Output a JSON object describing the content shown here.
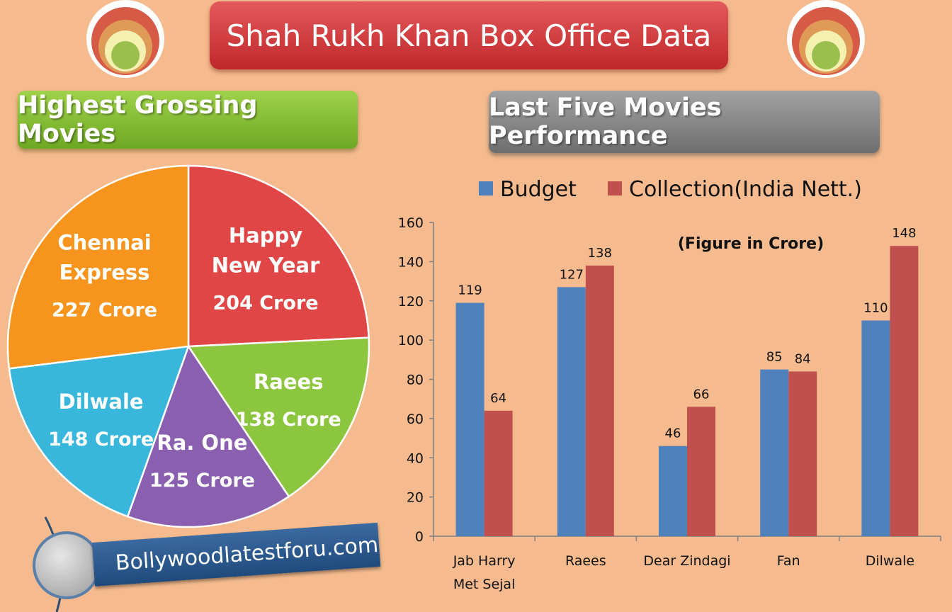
{
  "title": "Shah Rukh Khan Box Office Data",
  "left_heading": "Highest Grossing Movies",
  "right_heading": "Last Five Movies Performance",
  "footer_site": "Bollywoodlatestforu.com",
  "colors": {
    "background": "#f5bb8e",
    "budget": "#4f81bd",
    "collection": "#c0504d",
    "pie": [
      "#e04646",
      "#8cc63f",
      "#8a5fb0",
      "#38b6dc",
      "#f7941e"
    ]
  },
  "chart_data": [
    {
      "type": "pie",
      "title": "Highest Grossing Movies",
      "slices": [
        {
          "name_lines": [
            "Happy",
            "New Year"
          ],
          "value_label": "204 Crore",
          "value": 204
        },
        {
          "name_lines": [
            "Raees"
          ],
          "value_label": "138 Crore",
          "value": 138
        },
        {
          "name_lines": [
            "Ra. One"
          ],
          "value_label": "125 Crore",
          "value": 125
        },
        {
          "name_lines": [
            "Dilwale"
          ],
          "value_label": "148 Crore",
          "value": 148
        },
        {
          "name_lines": [
            "Chennai",
            "Express"
          ],
          "value_label": "227 Crore",
          "value": 227
        }
      ]
    },
    {
      "type": "bar",
      "title": "Last Five Movies Performance",
      "annotation": "(Figure in Crore)",
      "categories": [
        [
          "Jab Harry",
          "Met Sejal"
        ],
        [
          "Raees"
        ],
        [
          "Dear Zindagi"
        ],
        [
          "Fan"
        ],
        [
          "Dilwale"
        ]
      ],
      "series": [
        {
          "name": "Budget",
          "values": [
            119,
            127,
            46,
            85,
            110
          ]
        },
        {
          "name": "Collection(India Nett.)",
          "values": [
            64,
            138,
            66,
            84,
            148
          ]
        }
      ],
      "ylim": [
        0,
        160
      ],
      "yticks": [
        0,
        20,
        40,
        60,
        80,
        100,
        120,
        140,
        160
      ],
      "legend_position": "top",
      "grid": false
    }
  ]
}
